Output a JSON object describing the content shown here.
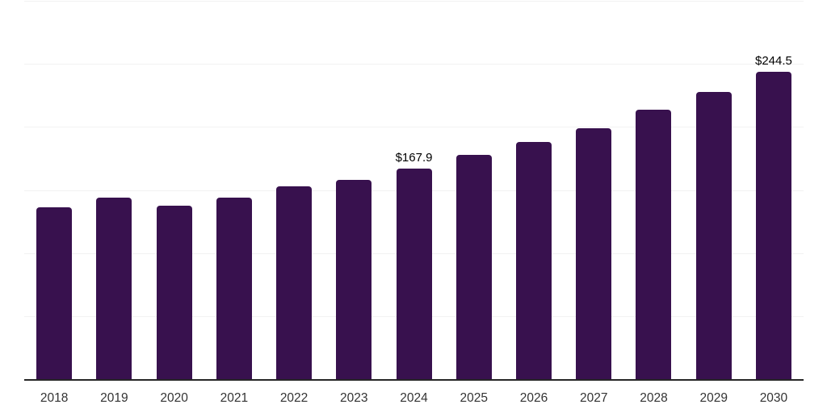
{
  "chart_data": {
    "type": "bar",
    "title": "",
    "xlabel": "",
    "ylabel": "",
    "categories": [
      "2018",
      "2019",
      "2020",
      "2021",
      "2022",
      "2023",
      "2024",
      "2025",
      "2026",
      "2027",
      "2028",
      "2029",
      "2030"
    ],
    "values": [
      137.0,
      144.8,
      138.2,
      144.5,
      153.5,
      158.7,
      167.9,
      178.3,
      188.7,
      199.7,
      214.0,
      228.4,
      244.5
    ],
    "data_labels": {
      "2024": "$167.9",
      "2030": "$244.5"
    },
    "ylim": [
      0,
      300
    ],
    "grid_step": 50,
    "grid": "horizontal-only",
    "y_tick_labels_visible": false,
    "legend": "none",
    "colors": {
      "bar": "#38114E",
      "axis": "#262626",
      "gridline": "#F2F2F2",
      "data_label": "#000000",
      "tick_label": "#333333",
      "background": "#FFFFFF"
    }
  }
}
